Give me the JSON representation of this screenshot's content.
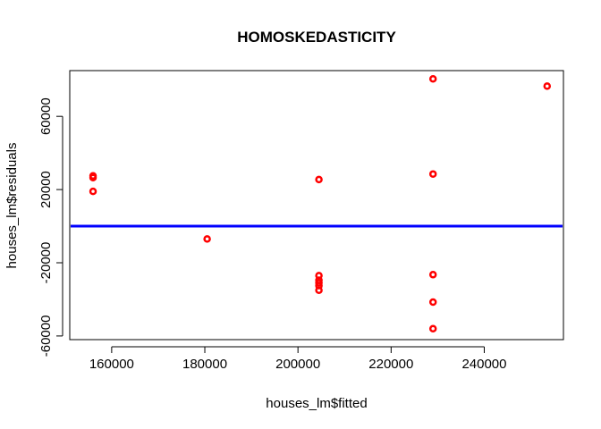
{
  "chart_data": {
    "type": "scatter",
    "title": "HOMOSKEDASTICITY",
    "xlabel": "houses_lm$fitted",
    "ylabel": "houses_lm$residuals",
    "xlim": [
      151000,
      257000
    ],
    "ylim": [
      -62000,
      85000
    ],
    "xticks": [
      160000,
      180000,
      200000,
      220000,
      240000
    ],
    "yticks": [
      -60000,
      -20000,
      20000,
      60000
    ],
    "xtick_labels": [
      "160000",
      "180000",
      "200000",
      "220000",
      "240000"
    ],
    "ytick_labels": [
      "-60000",
      "-20000",
      "20000",
      "60000"
    ],
    "grid": false,
    "legend": "none",
    "point_color": "#ff0000",
    "hline": {
      "y": 0,
      "color": "#0000ff"
    },
    "points": [
      {
        "x": 156000,
        "y": 27500
      },
      {
        "x": 156000,
        "y": 26500
      },
      {
        "x": 156000,
        "y": 19000
      },
      {
        "x": 180500,
        "y": -7000
      },
      {
        "x": 204500,
        "y": 25500
      },
      {
        "x": 204500,
        "y": -27000
      },
      {
        "x": 204500,
        "y": -29500
      },
      {
        "x": 204500,
        "y": -31000
      },
      {
        "x": 204500,
        "y": -32500
      },
      {
        "x": 204500,
        "y": -35000
      },
      {
        "x": 229000,
        "y": 80500
      },
      {
        "x": 229000,
        "y": 28500
      },
      {
        "x": 229000,
        "y": -26500
      },
      {
        "x": 229000,
        "y": -41500
      },
      {
        "x": 229000,
        "y": -56000
      },
      {
        "x": 253500,
        "y": 76500
      }
    ]
  }
}
